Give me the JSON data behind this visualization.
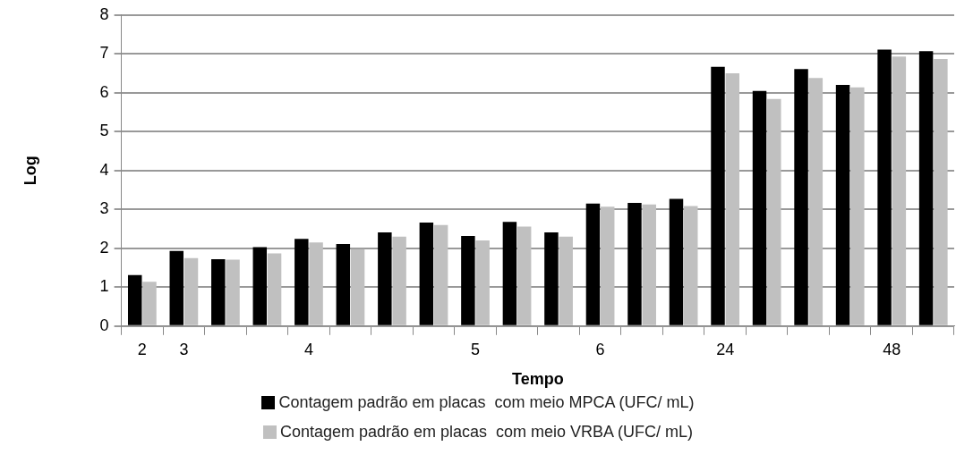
{
  "chart_data": {
    "type": "bar",
    "xlabel": "Tempo",
    "ylabel": "Log",
    "categories": [
      "2",
      "3",
      null,
      null,
      "4",
      null,
      null,
      null,
      "5",
      null,
      null,
      "6",
      null,
      null,
      "24",
      null,
      null,
      null,
      "48",
      null
    ],
    "series": [
      {
        "name": "Contagem padrão em placas  com meio MPCA (UFC/ mL)",
        "color": "#000000",
        "values": [
          1.31,
          1.93,
          1.72,
          2.03,
          2.24,
          2.11,
          2.41,
          2.66,
          2.32,
          2.68,
          2.41,
          3.15,
          3.17,
          3.27,
          6.67,
          6.05,
          6.61,
          6.2,
          7.11,
          7.07
        ]
      },
      {
        "name": "Contagem padrão em placas  com meio VRBA (UFC/ mL)",
        "color": "#c0c0c0",
        "values": [
          1.14,
          1.75,
          1.71,
          1.87,
          2.15,
          1.98,
          2.3,
          2.6,
          2.2,
          2.56,
          2.3,
          3.07,
          3.13,
          3.09,
          6.5,
          5.84,
          6.38,
          6.14,
          6.93,
          6.87
        ]
      }
    ],
    "ylim": [
      0,
      8
    ],
    "yticks": [
      0,
      1,
      2,
      3,
      4,
      5,
      6,
      7,
      8
    ],
    "grid": "y",
    "legend": "bottom"
  }
}
